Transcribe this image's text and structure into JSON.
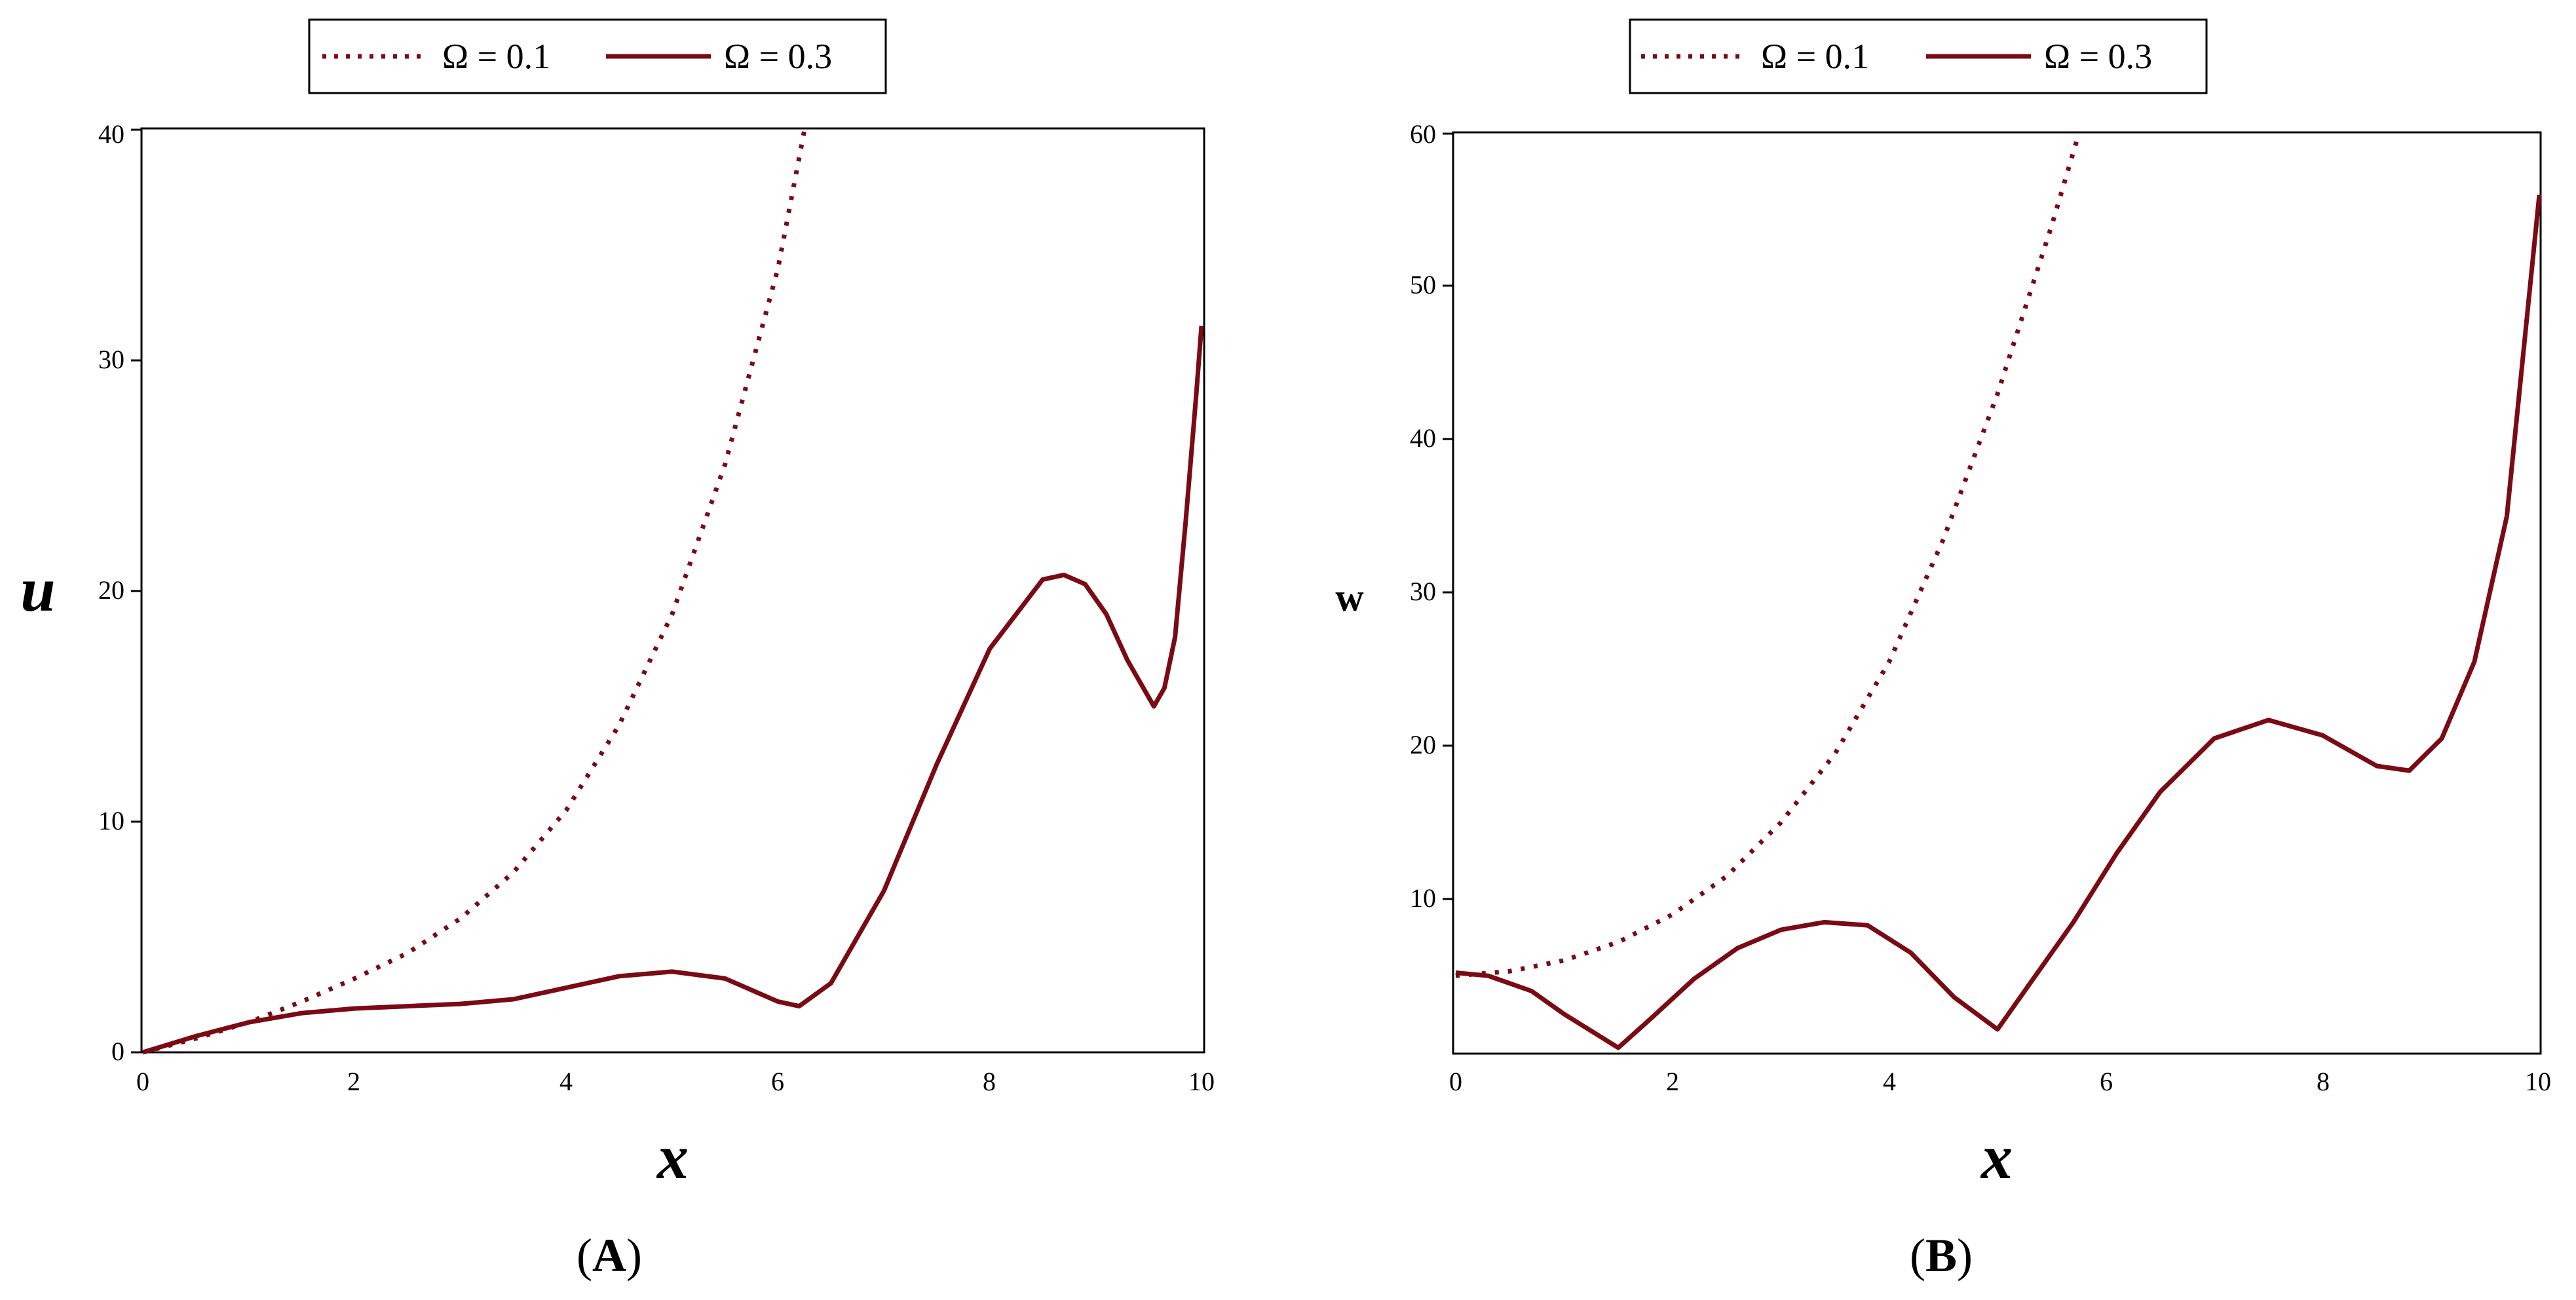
{
  "chart_data": [
    {
      "panel_label": "A",
      "type": "line",
      "xlabel": "x",
      "ylabel": "u",
      "xlim": [
        0,
        10
      ],
      "ylim": [
        0,
        40
      ],
      "xticks": [
        "0",
        "2",
        "4",
        "6",
        "8",
        "10"
      ],
      "yticks": [
        "0",
        "10",
        "20",
        "30",
        "40"
      ],
      "legend": "top-center",
      "series": [
        {
          "name": "Ω = 0.1",
          "style": "dotted",
          "color": "#7a0a14",
          "x": [
            0,
            0.5,
            1,
            1.5,
            2,
            2.5,
            3,
            3.5,
            4,
            4.5,
            5,
            5.5,
            6,
            6.25
          ],
          "y": [
            0,
            0.6,
            1.3,
            2.2,
            3.2,
            4.3,
            5.8,
            7.8,
            10.5,
            14.2,
            19,
            25.5,
            34,
            40
          ]
        },
        {
          "name": "Ω = 0.3",
          "style": "solid",
          "color": "#7a0a14",
          "x": [
            0,
            0.5,
            1,
            1.5,
            2,
            2.5,
            3,
            3.5,
            4,
            4.5,
            5,
            5.5,
            6,
            6.2,
            6.5,
            7,
            7.5,
            8,
            8.5,
            8.7,
            8.9,
            9.1,
            9.3,
            9.55,
            9.65,
            9.75,
            9.85,
            9.95,
            10
          ],
          "y": [
            0,
            0.7,
            1.3,
            1.7,
            1.9,
            2.0,
            2.1,
            2.3,
            2.8,
            3.3,
            3.5,
            3.2,
            2.2,
            2.0,
            3.0,
            7.0,
            12.5,
            17.5,
            20.5,
            20.7,
            20.3,
            19.0,
            17.0,
            15.0,
            15.8,
            18.0,
            23.0,
            28.5,
            31.5
          ]
        }
      ]
    },
    {
      "panel_label": "B",
      "type": "line",
      "xlabel": "x",
      "ylabel": "w",
      "xlim": [
        0,
        10
      ],
      "ylim": [
        0,
        60
      ],
      "xticks": [
        "0",
        "2",
        "4",
        "6",
        "8",
        "10"
      ],
      "yticks": [
        "10",
        "20",
        "30",
        "40",
        "50",
        "60"
      ],
      "legend": "top-center",
      "series": [
        {
          "name": "Ω = 0.1",
          "style": "dotted",
          "color": "#7a0a14",
          "x": [
            0,
            0.5,
            1,
            1.5,
            2,
            2.5,
            3,
            3.5,
            4,
            4.5,
            5,
            5.5,
            5.75
          ],
          "y": [
            5,
            5.3,
            6.0,
            7.2,
            9.0,
            11.5,
            15.0,
            19.5,
            25.5,
            33.5,
            43.0,
            54.0,
            60.0
          ]
        },
        {
          "name": "Ω = 0.3",
          "style": "solid",
          "color": "#7a0a14",
          "x": [
            0,
            0.3,
            0.7,
            1.0,
            1.5,
            1.8,
            2.2,
            2.6,
            3.0,
            3.4,
            3.8,
            4.2,
            4.6,
            5.0,
            5.3,
            5.7,
            6.1,
            6.5,
            7.0,
            7.5,
            8.0,
            8.5,
            8.8,
            9.1,
            9.4,
            9.7,
            10.0
          ],
          "y": [
            5.2,
            5.0,
            4.0,
            2.5,
            0.3,
            2.2,
            4.8,
            6.8,
            8.0,
            8.5,
            8.3,
            6.5,
            3.6,
            1.5,
            4.5,
            8.5,
            13.0,
            17.0,
            20.5,
            21.7,
            20.7,
            18.7,
            18.4,
            20.5,
            25.5,
            35.0,
            56.0
          ]
        }
      ]
    }
  ]
}
